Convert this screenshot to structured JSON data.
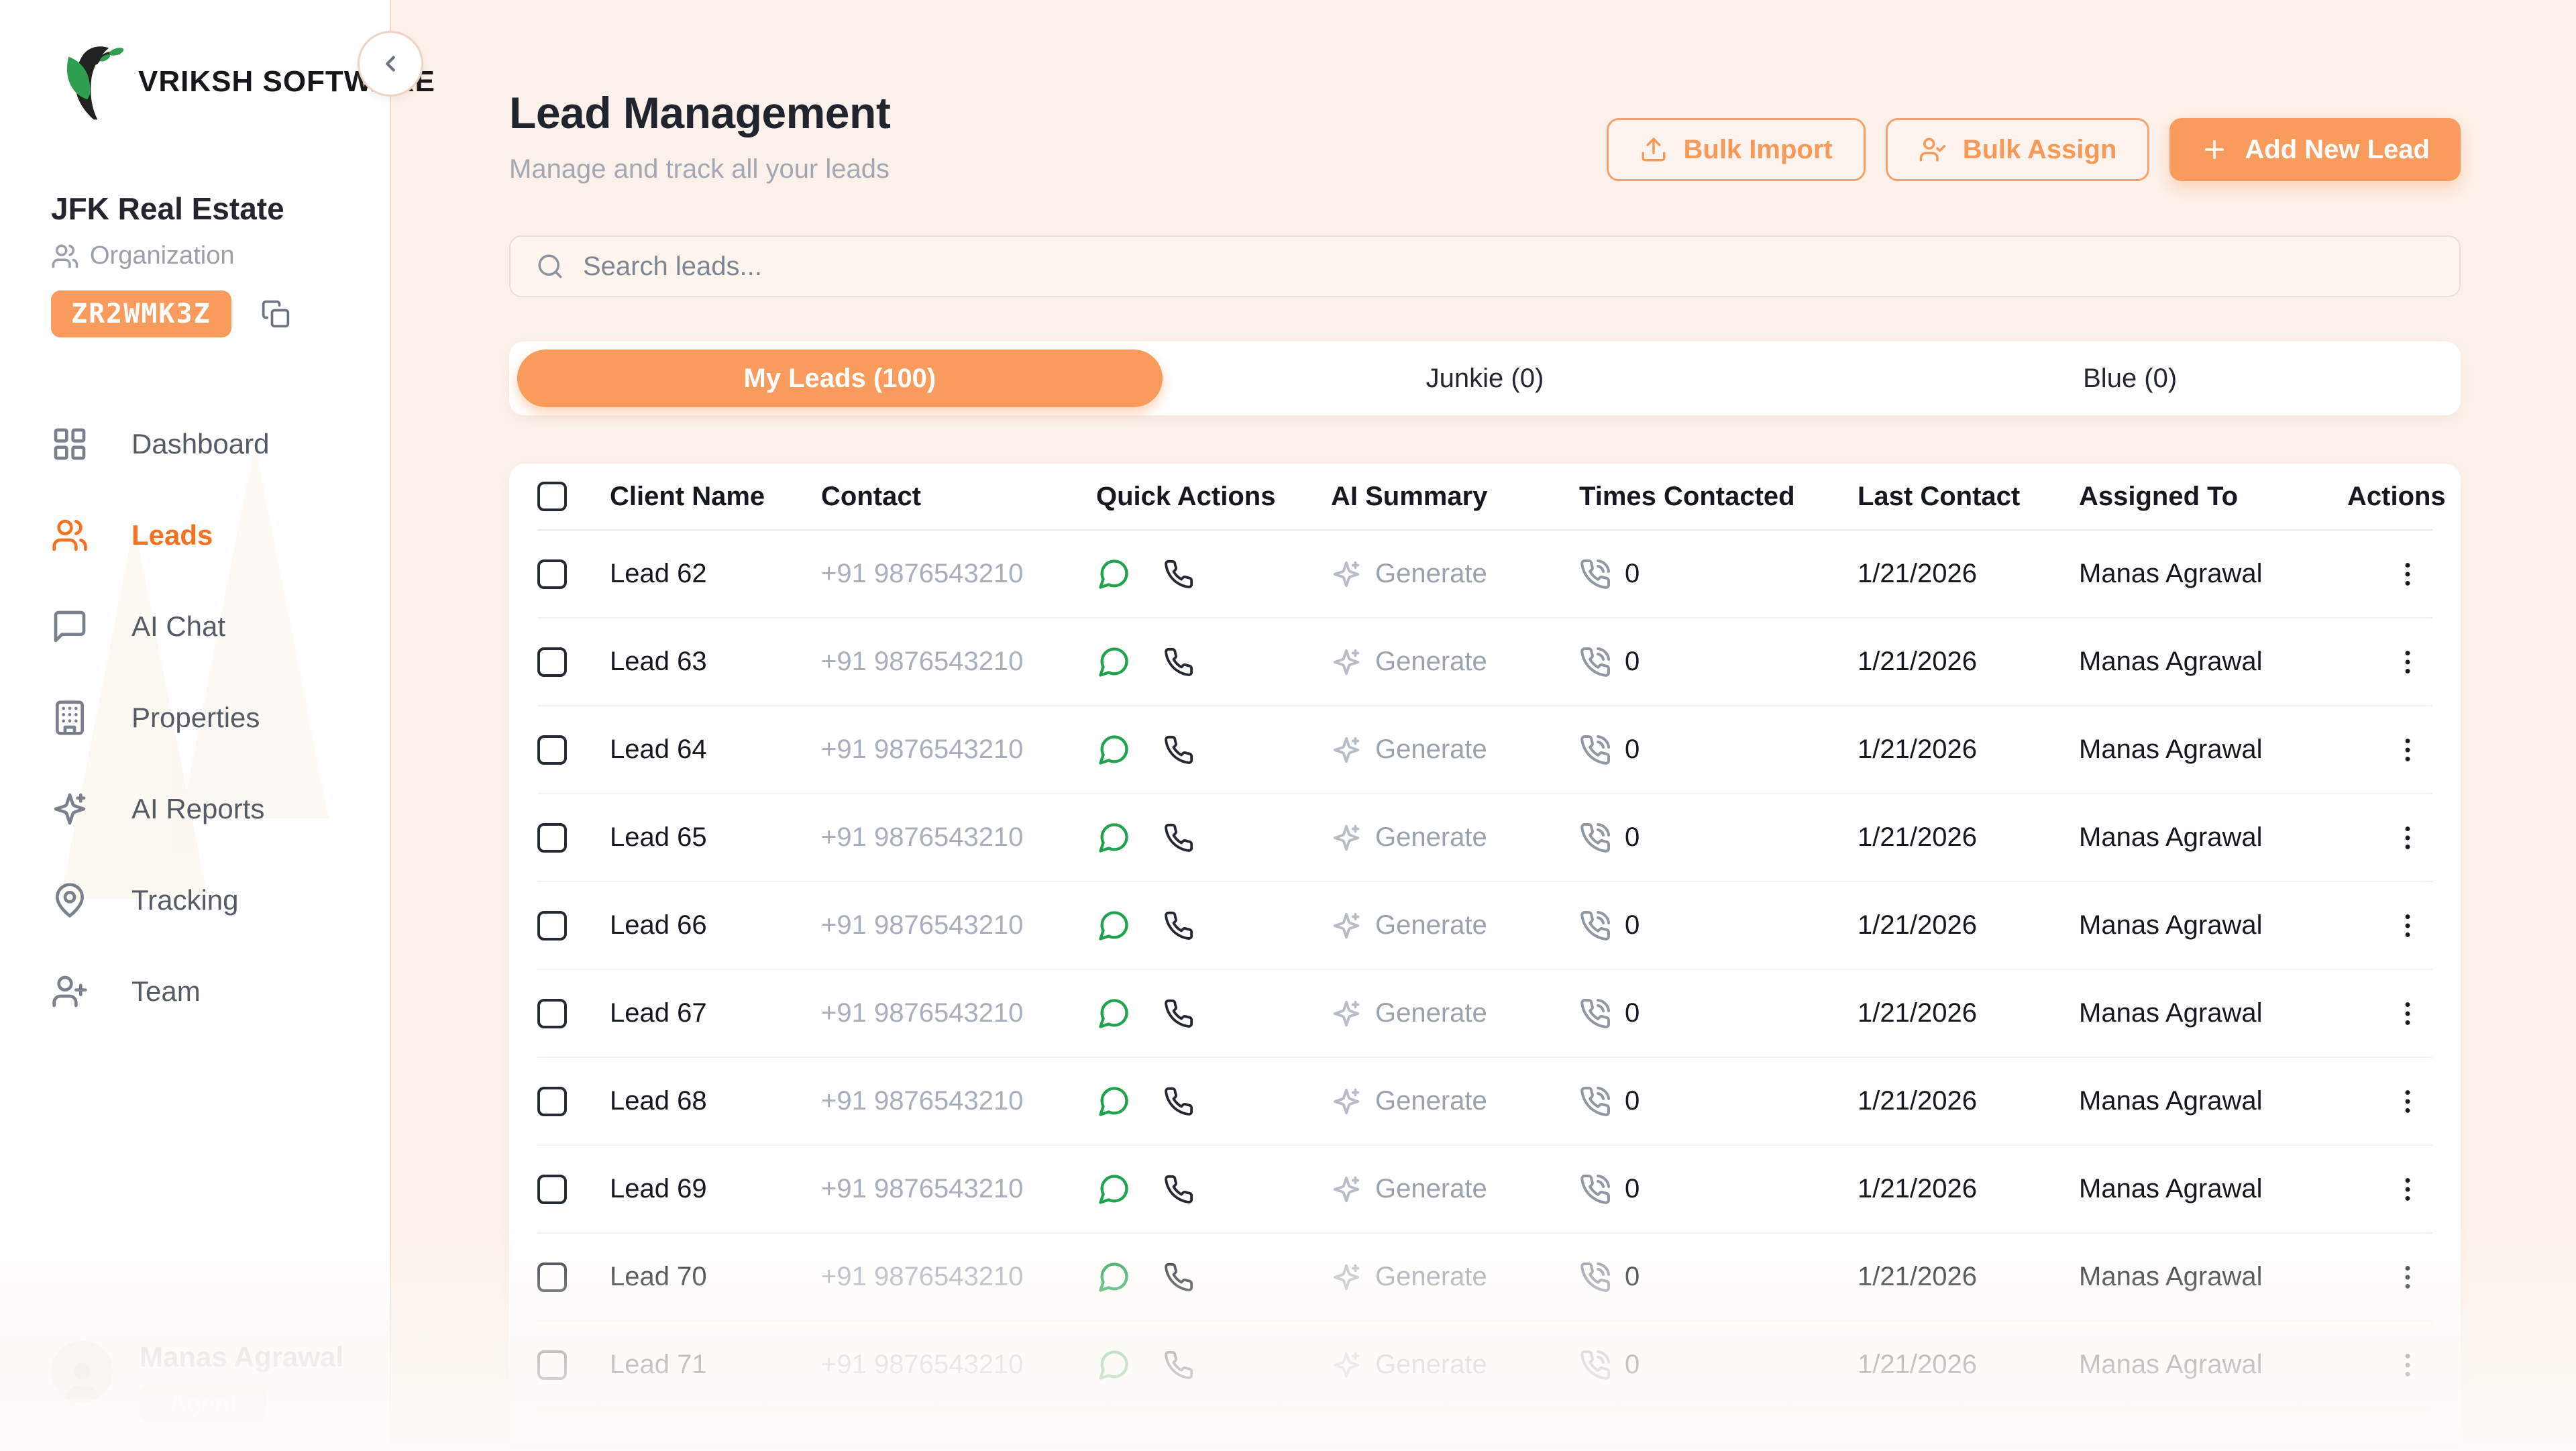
{
  "brand": {
    "name": "VRIKSH SOFTWARE"
  },
  "sidebar": {
    "org": {
      "name": "JFK Real Estate",
      "type_label": "Organization",
      "code": "ZR2WMK3Z"
    },
    "items": [
      {
        "label": "Dashboard",
        "icon": "dashboard-icon",
        "active": false
      },
      {
        "label": "Leads",
        "icon": "leads-icon",
        "active": true
      },
      {
        "label": "AI Chat",
        "icon": "ai-chat-icon",
        "active": false
      },
      {
        "label": "Properties",
        "icon": "properties-icon",
        "active": false
      },
      {
        "label": "AI Reports",
        "icon": "ai-reports-icon",
        "active": false
      },
      {
        "label": "Tracking",
        "icon": "tracking-icon",
        "active": false
      },
      {
        "label": "Team",
        "icon": "team-icon",
        "active": false
      }
    ],
    "user": {
      "name": "Manas Agrawal",
      "role": "Agent"
    }
  },
  "header": {
    "title": "Lead Management",
    "subtitle": "Manage and track all your leads",
    "buttons": [
      {
        "label": "Bulk Import",
        "icon": "upload-icon",
        "variant": "outline"
      },
      {
        "label": "Bulk Assign",
        "icon": "user-check-icon",
        "variant": "outline"
      },
      {
        "label": "Add New Lead",
        "icon": "plus-icon",
        "variant": "solid"
      }
    ]
  },
  "search": {
    "placeholder": "Search leads..."
  },
  "tabs": [
    {
      "label": "My Leads (100)",
      "active": true
    },
    {
      "label": "Junkie (0)",
      "active": false
    },
    {
      "label": "Blue (0)",
      "active": false
    }
  ],
  "table": {
    "columns": [
      "Client Name",
      "Contact",
      "Quick Actions",
      "AI Summary",
      "Times Contacted",
      "Last Contact",
      "Assigned To",
      "Actions"
    ],
    "generate_label": "Generate",
    "rows": [
      {
        "client_name": "Lead 62",
        "contact": "+91 9876543210",
        "times_contacted": "0",
        "last_contact": "1/21/2026",
        "assigned_to": "Manas Agrawal"
      },
      {
        "client_name": "Lead 63",
        "contact": "+91 9876543210",
        "times_contacted": "0",
        "last_contact": "1/21/2026",
        "assigned_to": "Manas Agrawal"
      },
      {
        "client_name": "Lead 64",
        "contact": "+91 9876543210",
        "times_contacted": "0",
        "last_contact": "1/21/2026",
        "assigned_to": "Manas Agrawal"
      },
      {
        "client_name": "Lead 65",
        "contact": "+91 9876543210",
        "times_contacted": "0",
        "last_contact": "1/21/2026",
        "assigned_to": "Manas Agrawal"
      },
      {
        "client_name": "Lead 66",
        "contact": "+91 9876543210",
        "times_contacted": "0",
        "last_contact": "1/21/2026",
        "assigned_to": "Manas Agrawal"
      },
      {
        "client_name": "Lead 67",
        "contact": "+91 9876543210",
        "times_contacted": "0",
        "last_contact": "1/21/2026",
        "assigned_to": "Manas Agrawal"
      },
      {
        "client_name": "Lead 68",
        "contact": "+91 9876543210",
        "times_contacted": "0",
        "last_contact": "1/21/2026",
        "assigned_to": "Manas Agrawal"
      },
      {
        "client_name": "Lead 69",
        "contact": "+91 9876543210",
        "times_contacted": "0",
        "last_contact": "1/21/2026",
        "assigned_to": "Manas Agrawal"
      },
      {
        "client_name": "Lead 70",
        "contact": "+91 9876543210",
        "times_contacted": "0",
        "last_contact": "1/21/2026",
        "assigned_to": "Manas Agrawal"
      },
      {
        "client_name": "Lead 71",
        "contact": "+91 9876543210",
        "times_contacted": "0",
        "last_contact": "1/21/2026",
        "assigned_to": "Manas Agrawal"
      }
    ]
  },
  "colors": {
    "accent": "#f89b5d",
    "accent_deep": "#f4711f",
    "whatsapp_green": "#1fa34e",
    "page_bg": "#fcf1ea"
  }
}
